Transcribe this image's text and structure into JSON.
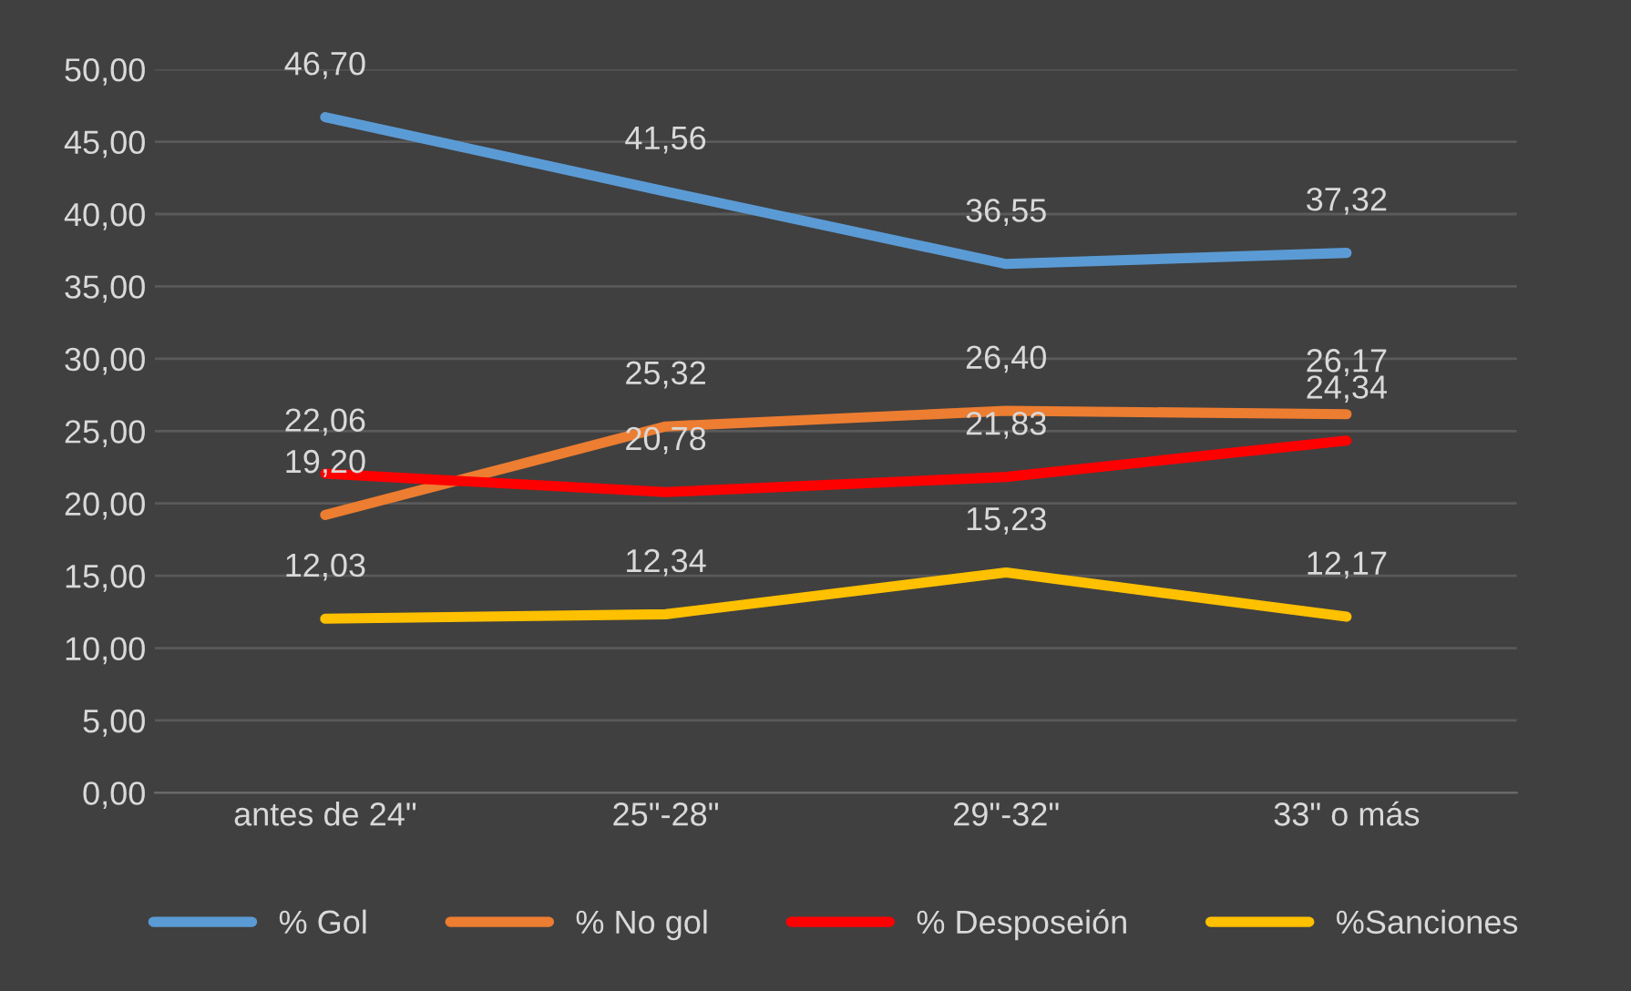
{
  "chart_data": {
    "type": "line",
    "categories": [
      "antes de 24\"",
      "25\"-28\"",
      "29\"-32\"",
      "33\" o más"
    ],
    "series": [
      {
        "name": "% Gol",
        "color": "#5b9bd5",
        "values": [
          46.7,
          41.56,
          36.55,
          37.32
        ],
        "value_labels": [
          "46,70",
          "41,56",
          "36,55",
          "37,32"
        ]
      },
      {
        "name": "% No gol",
        "color": "#ed7d31",
        "values": [
          19.2,
          25.32,
          26.4,
          26.17
        ],
        "value_labels": [
          "19,20",
          "25,32",
          "26,40",
          "26,17"
        ]
      },
      {
        "name": "% Desposeión",
        "color": "#ff0000",
        "values": [
          22.06,
          20.78,
          21.83,
          24.34
        ],
        "value_labels": [
          "22,06",
          "20,78",
          "21,83",
          "24,34"
        ]
      },
      {
        "name": "%Sanciones",
        "color": "#ffc000",
        "values": [
          12.03,
          12.34,
          15.23,
          12.17
        ],
        "value_labels": [
          "12,03",
          "12,34",
          "15,23",
          "12,17"
        ]
      }
    ],
    "ylim": [
      0,
      50
    ],
    "yticks": [
      {
        "value": 0,
        "label": "0,00"
      },
      {
        "value": 5,
        "label": "5,00"
      },
      {
        "value": 10,
        "label": "10,00"
      },
      {
        "value": 15,
        "label": "15,00"
      },
      {
        "value": 20,
        "label": "20,00"
      },
      {
        "value": 25,
        "label": "25,00"
      },
      {
        "value": 30,
        "label": "30,00"
      },
      {
        "value": 35,
        "label": "35,00"
      },
      {
        "value": 40,
        "label": "40,00"
      },
      {
        "value": 45,
        "label": "45,00"
      },
      {
        "value": 50,
        "label": "50,00"
      }
    ],
    "grid": "y",
    "legend": "bottom",
    "marker": "none",
    "line_style": "solid"
  }
}
